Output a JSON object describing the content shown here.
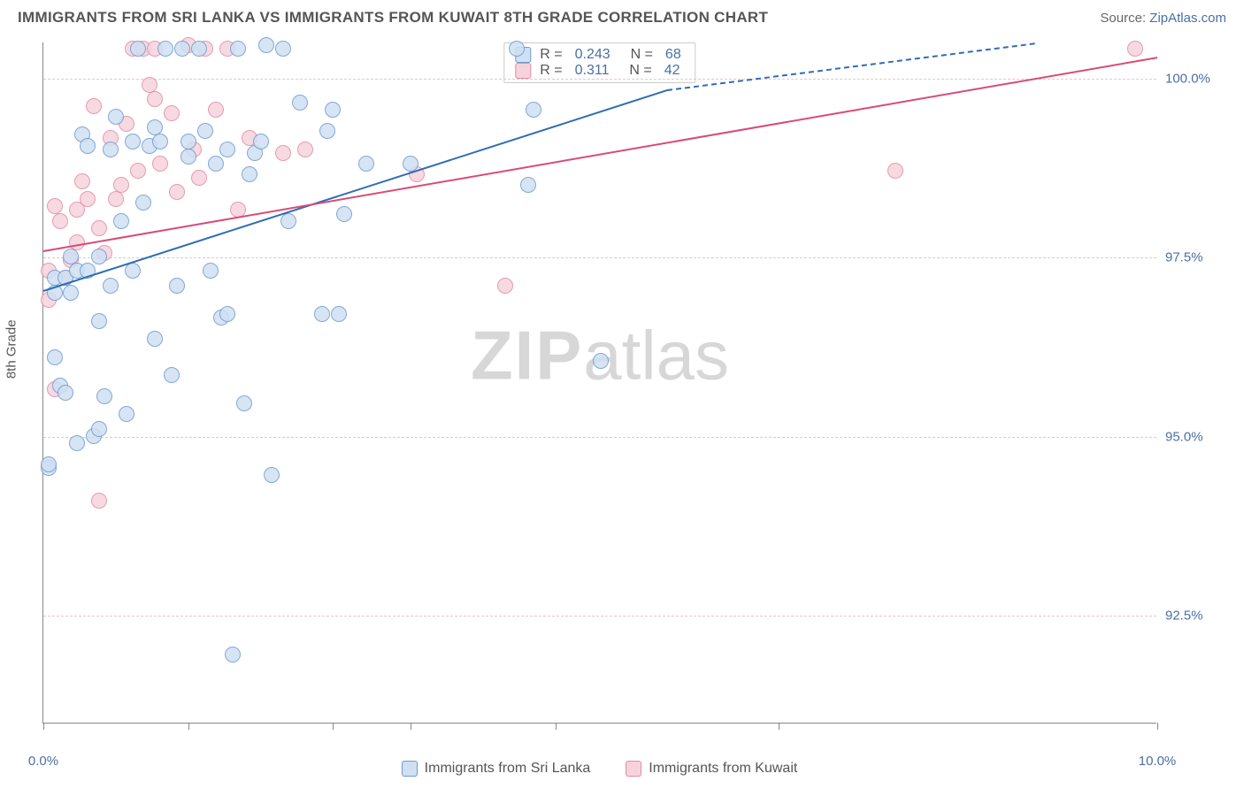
{
  "title": "IMMIGRANTS FROM SRI LANKA VS IMMIGRANTS FROM KUWAIT 8TH GRADE CORRELATION CHART",
  "source_label": "Source:",
  "source_link": "ZipAtlas.com",
  "ylabel": "8th Grade",
  "watermark": {
    "bold": "ZIP",
    "rest": "atlas"
  },
  "chart": {
    "type": "scatter",
    "xlim": [
      0.0,
      10.0
    ],
    "ylim": [
      91.0,
      100.5
    ],
    "yticks": [
      92.5,
      95.0,
      97.5,
      100.0
    ],
    "ytick_labels": [
      "92.5%",
      "95.0%",
      "97.5%",
      "100.0%"
    ],
    "xticks": [
      0.0,
      1.3,
      2.6,
      3.3,
      4.6,
      6.6,
      10.0
    ],
    "x_axis_labels": {
      "left": "0.0%",
      "right": "10.0%"
    },
    "grid_color": "#e9c4c9",
    "axis_color": "#888888",
    "background": "#ffffff",
    "point_radius": 9,
    "point_stroke_width": 1.5,
    "trend_width": 2,
    "series": [
      {
        "name": "Immigrants from Sri Lanka",
        "fill": "#cfe0f2",
        "stroke": "#6b9bd1",
        "trend_color": "#2f6db3",
        "R": 0.243,
        "N": 68,
        "trend": {
          "x1": 0.0,
          "y1": 97.05,
          "x2": 5.6,
          "y2": 99.85,
          "dash_x2": 8.9,
          "dash_y2": 100.5
        },
        "points": [
          [
            0.05,
            94.55
          ],
          [
            0.05,
            94.6
          ],
          [
            0.1,
            97.0
          ],
          [
            0.1,
            97.2
          ],
          [
            0.1,
            96.1
          ],
          [
            0.15,
            95.7
          ],
          [
            0.2,
            97.2
          ],
          [
            0.2,
            95.6
          ],
          [
            0.25,
            97.0
          ],
          [
            0.25,
            97.5
          ],
          [
            0.3,
            97.3
          ],
          [
            0.3,
            94.9
          ],
          [
            0.35,
            99.2
          ],
          [
            0.4,
            97.3
          ],
          [
            0.4,
            99.05
          ],
          [
            0.45,
            95.0
          ],
          [
            0.5,
            96.6
          ],
          [
            0.5,
            95.1
          ],
          [
            0.5,
            97.5
          ],
          [
            0.55,
            95.55
          ],
          [
            0.6,
            99.0
          ],
          [
            0.6,
            97.1
          ],
          [
            0.65,
            99.45
          ],
          [
            0.7,
            98.0
          ],
          [
            0.75,
            95.3
          ],
          [
            0.8,
            99.1
          ],
          [
            0.8,
            97.3
          ],
          [
            0.85,
            100.4
          ],
          [
            0.9,
            98.25
          ],
          [
            0.95,
            99.05
          ],
          [
            1.0,
            99.3
          ],
          [
            1.0,
            96.35
          ],
          [
            1.05,
            99.1
          ],
          [
            1.1,
            100.4
          ],
          [
            1.15,
            95.85
          ],
          [
            1.2,
            97.1
          ],
          [
            1.25,
            100.4
          ],
          [
            1.3,
            98.9
          ],
          [
            1.3,
            99.1
          ],
          [
            1.4,
            100.4
          ],
          [
            1.45,
            99.25
          ],
          [
            1.5,
            97.3
          ],
          [
            1.55,
            98.8
          ],
          [
            1.6,
            96.65
          ],
          [
            1.65,
            99.0
          ],
          [
            1.65,
            96.7
          ],
          [
            1.7,
            91.95
          ],
          [
            1.75,
            100.4
          ],
          [
            1.8,
            95.45
          ],
          [
            1.85,
            98.65
          ],
          [
            1.9,
            98.95
          ],
          [
            1.95,
            99.1
          ],
          [
            2.0,
            100.45
          ],
          [
            2.05,
            94.45
          ],
          [
            2.15,
            100.4
          ],
          [
            2.2,
            98.0
          ],
          [
            2.3,
            99.65
          ],
          [
            2.5,
            96.7
          ],
          [
            2.55,
            99.25
          ],
          [
            2.6,
            99.55
          ],
          [
            2.65,
            96.7
          ],
          [
            2.7,
            98.1
          ],
          [
            2.9,
            98.8
          ],
          [
            3.3,
            98.8
          ],
          [
            4.25,
            100.4
          ],
          [
            4.35,
            98.5
          ],
          [
            4.4,
            99.55
          ],
          [
            5.0,
            96.05
          ]
        ]
      },
      {
        "name": "Immigrants from Kuwait",
        "fill": "#f6d3dc",
        "stroke": "#e38aa2",
        "trend_color": "#d84b76",
        "R": 0.311,
        "N": 42,
        "trend": {
          "x1": 0.0,
          "y1": 97.6,
          "x2": 10.0,
          "y2": 100.3
        },
        "points": [
          [
            0.05,
            97.3
          ],
          [
            0.05,
            96.9
          ],
          [
            0.1,
            98.2
          ],
          [
            0.1,
            95.65
          ],
          [
            0.15,
            98.0
          ],
          [
            0.2,
            97.2
          ],
          [
            0.25,
            97.45
          ],
          [
            0.3,
            97.7
          ],
          [
            0.3,
            98.15
          ],
          [
            0.35,
            98.55
          ],
          [
            0.4,
            98.3
          ],
          [
            0.45,
            99.6
          ],
          [
            0.5,
            97.9
          ],
          [
            0.5,
            94.1
          ],
          [
            0.55,
            97.55
          ],
          [
            0.6,
            99.15
          ],
          [
            0.65,
            98.3
          ],
          [
            0.7,
            98.5
          ],
          [
            0.75,
            99.35
          ],
          [
            0.8,
            100.4
          ],
          [
            0.85,
            98.7
          ],
          [
            0.9,
            100.4
          ],
          [
            0.95,
            99.9
          ],
          [
            1.0,
            99.7
          ],
          [
            1.0,
            100.4
          ],
          [
            1.05,
            98.8
          ],
          [
            1.15,
            99.5
          ],
          [
            1.2,
            98.4
          ],
          [
            1.3,
            100.45
          ],
          [
            1.35,
            99.0
          ],
          [
            1.4,
            98.6
          ],
          [
            1.45,
            100.4
          ],
          [
            1.55,
            99.55
          ],
          [
            1.65,
            100.4
          ],
          [
            1.75,
            98.15
          ],
          [
            1.85,
            99.15
          ],
          [
            2.15,
            98.95
          ],
          [
            2.35,
            99.0
          ],
          [
            3.35,
            98.65
          ],
          [
            4.15,
            97.1
          ],
          [
            7.65,
            98.7
          ],
          [
            9.8,
            100.4
          ]
        ]
      }
    ]
  },
  "legend_top": [
    {
      "swatch_fill": "#cfe0f2",
      "swatch_stroke": "#6b9bd1",
      "R": "0.243",
      "N": "68"
    },
    {
      "swatch_fill": "#f6d3dc",
      "swatch_stroke": "#e38aa2",
      "R": "0.311",
      "N": "42"
    }
  ],
  "legend_bottom": [
    {
      "swatch_fill": "#cfe0f2",
      "swatch_stroke": "#6b9bd1",
      "label": "Immigrants from Sri Lanka"
    },
    {
      "swatch_fill": "#f6d3dc",
      "swatch_stroke": "#e38aa2",
      "label": "Immigrants from Kuwait"
    }
  ]
}
